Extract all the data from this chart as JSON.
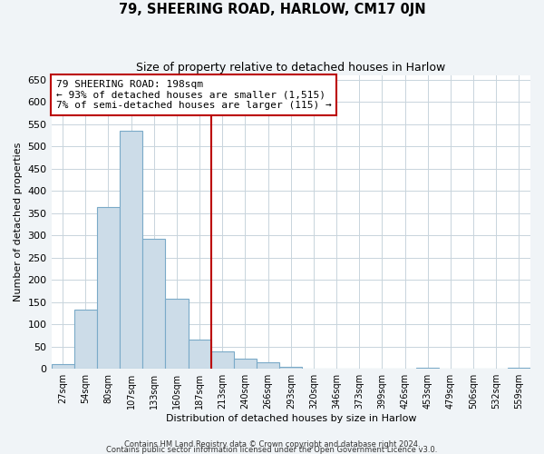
{
  "title": "79, SHEERING ROAD, HARLOW, CM17 0JN",
  "subtitle": "Size of property relative to detached houses in Harlow",
  "xlabel": "Distribution of detached houses by size in Harlow",
  "ylabel": "Number of detached properties",
  "bar_color": "#ccdce8",
  "bar_edge_color": "#7aaac8",
  "bin_labels": [
    "27sqm",
    "54sqm",
    "80sqm",
    "107sqm",
    "133sqm",
    "160sqm",
    "187sqm",
    "213sqm",
    "240sqm",
    "266sqm",
    "293sqm",
    "320sqm",
    "346sqm",
    "373sqm",
    "399sqm",
    "426sqm",
    "453sqm",
    "479sqm",
    "506sqm",
    "532sqm",
    "559sqm"
  ],
  "bar_heights": [
    10,
    133,
    363,
    535,
    293,
    158,
    65,
    40,
    22,
    14,
    5,
    0,
    0,
    0,
    0,
    0,
    2,
    0,
    0,
    0,
    2
  ],
  "vline_color": "#bb0000",
  "annotation_line1": "79 SHEERING ROAD: 198sqm",
  "annotation_line2": "← 93% of detached houses are smaller (1,515)",
  "annotation_line3": "7% of semi-detached houses are larger (115) →",
  "annotation_box_color": "#ffffff",
  "annotation_box_edge_color": "#bb0000",
  "ylim": [
    0,
    660
  ],
  "yticks": [
    0,
    50,
    100,
    150,
    200,
    250,
    300,
    350,
    400,
    450,
    500,
    550,
    600,
    650
  ],
  "footer1": "Contains HM Land Registry data © Crown copyright and database right 2024.",
  "footer2": "Contains public sector information licensed under the Open Government Licence v3.0.",
  "background_color": "#f0f4f7",
  "plot_background_color": "#ffffff",
  "grid_color": "#c8d4dc"
}
